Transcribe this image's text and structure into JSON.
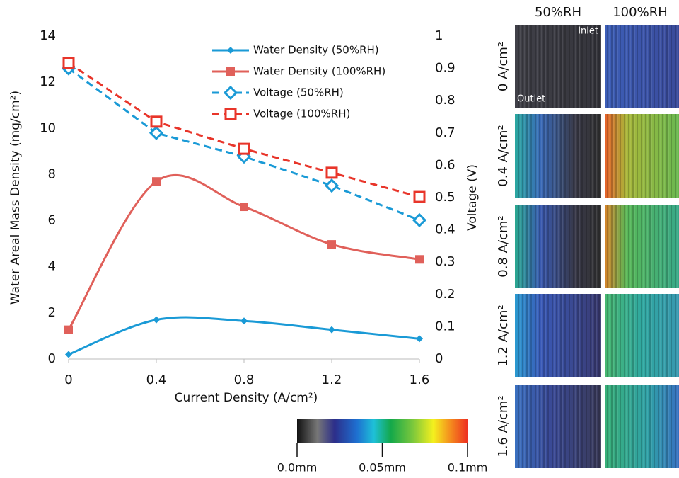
{
  "chart_data": {
    "type": "line",
    "x_label": "Current Density (A/cm²)",
    "y_label": "Water Areal Mass Density (mg/cm²)",
    "y2_label": "Voltage (V)",
    "x": [
      0,
      0.4,
      0.8,
      1.2,
      1.6
    ],
    "xlim": [
      0,
      1.6
    ],
    "xticks": [
      0,
      0.4,
      0.8,
      1.2,
      1.6
    ],
    "ylim": [
      0,
      14
    ],
    "yticks": [
      0,
      2,
      4,
      6,
      8,
      10,
      12,
      14
    ],
    "y2lim": [
      0,
      1
    ],
    "y2ticks": [
      0,
      0.1,
      0.2,
      0.3,
      0.4,
      0.5,
      0.6,
      0.7,
      0.8,
      0.9,
      1
    ],
    "series": [
      {
        "name": "Water Density (50%RH)",
        "color": "#1a9ad6",
        "values": [
          0.2,
          1.7,
          1.65,
          1.27,
          0.88
        ],
        "line_style": "solid",
        "smooth": true,
        "marker": "diamond"
      },
      {
        "name": "Water Density (100%RH)",
        "color": "#e0605a",
        "values": [
          1.27,
          7.7,
          6.6,
          4.97,
          4.32
        ],
        "line_style": "solid",
        "smooth": true,
        "marker": "square"
      },
      {
        "name": "Voltage (50%RH)",
        "color": "#1a9ad6",
        "values": [
          0.9,
          0.7,
          0.627,
          0.537,
          0.43
        ],
        "axis": "y2",
        "line_style": "dashed",
        "smooth": false,
        "marker": "open-diamond"
      },
      {
        "name": "Voltage (100%RH)",
        "color": "#e8352a",
        "values": [
          0.917,
          0.735,
          0.651,
          0.577,
          0.502
        ],
        "axis": "y2",
        "line_style": "dashed",
        "smooth": false,
        "marker": "open-square"
      }
    ]
  },
  "colorbar": {
    "lim": [
      0,
      0.1
    ],
    "ticks": [
      {
        "value": 0,
        "label": "0.0mm"
      },
      {
        "value": 0.05,
        "label": "0.05mm"
      },
      {
        "value": 0.1,
        "label": "0.1mm"
      }
    ]
  },
  "images": {
    "columns": [
      "50%RH",
      "100%RH"
    ],
    "rows": [
      "0 A/cm²",
      "0.4 A/cm²",
      "0.8 A/cm²",
      "1.2 A/cm²",
      "1.6 A/cm²"
    ],
    "inlet": "Inlet",
    "outlet": "Outlet"
  }
}
